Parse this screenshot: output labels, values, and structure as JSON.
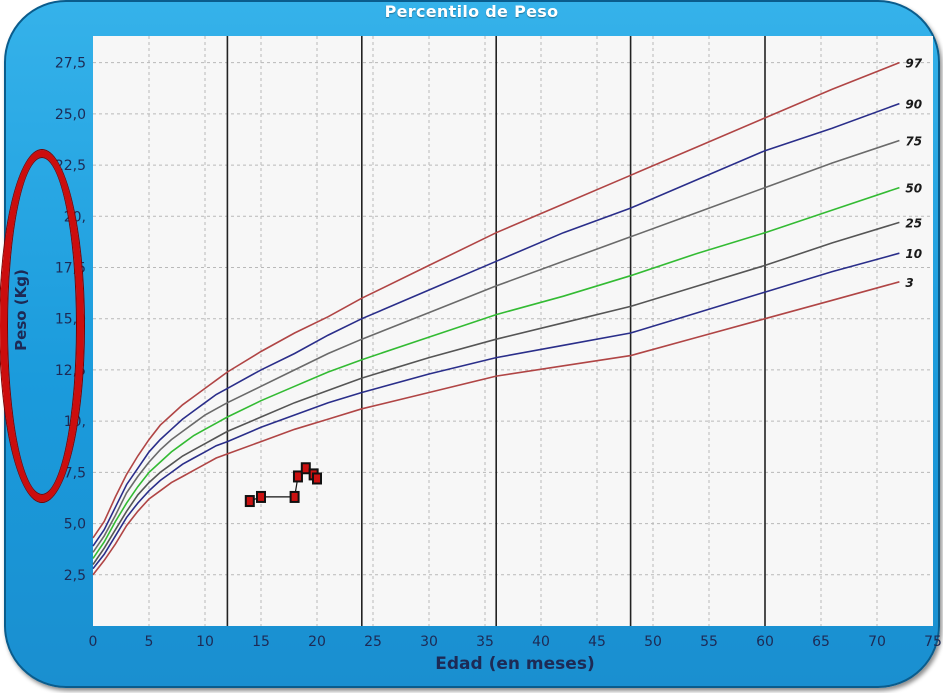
{
  "chart_data": {
    "type": "line",
    "title": "Percentilo de Peso",
    "xlabel": "Edad (en meses)",
    "ylabel": "Peso (Kg)",
    "xlim": [
      0,
      75
    ],
    "ylim": [
      0,
      28.8
    ],
    "x_ticks": [
      "0",
      "5",
      "10",
      "15",
      "20",
      "25",
      "30",
      "35",
      "40",
      "45",
      "50",
      "55",
      "60",
      "65",
      "70",
      "75"
    ],
    "y_ticks": [
      {
        "value": 2.5,
        "label": "2,5"
      },
      {
        "value": 5.0,
        "label": "5,0"
      },
      {
        "value": 7.5,
        "label": "7,5"
      },
      {
        "value": 10.0,
        "label": "10,"
      },
      {
        "value": 12.5,
        "label": "12,5"
      },
      {
        "value": 15.0,
        "label": "15,0"
      },
      {
        "value": 17.5,
        "label": "17,5"
      },
      {
        "value": 20.0,
        "label": "20,"
      },
      {
        "value": 22.5,
        "label": "22,5"
      },
      {
        "value": 25.0,
        "label": "25,0"
      },
      {
        "value": 27.5,
        "label": "27,5"
      }
    ],
    "year_lines": [
      12,
      24,
      36,
      48,
      60
    ],
    "grid": true,
    "x": [
      0,
      1,
      2,
      3,
      4,
      5,
      6,
      7,
      8,
      9,
      10,
      11,
      12,
      15,
      18,
      21,
      24,
      30,
      36,
      42,
      48,
      54,
      60,
      66,
      72
    ],
    "series": [
      {
        "name": "97",
        "color": "#b04545",
        "values": [
          4.3,
          5.1,
          6.3,
          7.4,
          8.3,
          9.1,
          9.8,
          10.3,
          10.8,
          11.2,
          11.6,
          12.0,
          12.4,
          13.4,
          14.3,
          15.1,
          16.0,
          17.6,
          19.2,
          20.6,
          22.0,
          23.4,
          24.8,
          26.2,
          27.5
        ]
      },
      {
        "name": "90",
        "color": "#2a2e8a",
        "values": [
          3.9,
          4.7,
          5.8,
          6.9,
          7.7,
          8.5,
          9.1,
          9.6,
          10.1,
          10.5,
          10.9,
          11.3,
          11.6,
          12.5,
          13.3,
          14.2,
          15.0,
          16.4,
          17.8,
          19.2,
          20.4,
          21.8,
          23.2,
          24.3,
          25.5
        ]
      },
      {
        "name": "75",
        "color": "#6a6a6a",
        "values": [
          3.6,
          4.4,
          5.4,
          6.5,
          7.3,
          8.0,
          8.6,
          9.1,
          9.5,
          9.9,
          10.3,
          10.6,
          10.9,
          11.7,
          12.5,
          13.3,
          14.0,
          15.3,
          16.6,
          17.8,
          19.0,
          20.2,
          21.4,
          22.6,
          23.7
        ]
      },
      {
        "name": "50",
        "color": "#33bb33",
        "values": [
          3.3,
          4.1,
          5.1,
          6.0,
          6.8,
          7.5,
          8.0,
          8.5,
          8.9,
          9.3,
          9.6,
          9.9,
          10.2,
          11.0,
          11.7,
          12.4,
          13.0,
          14.1,
          15.2,
          16.1,
          17.1,
          18.2,
          19.2,
          20.3,
          21.4
        ]
      },
      {
        "name": "25",
        "color": "#555555",
        "values": [
          3.0,
          3.8,
          4.7,
          5.6,
          6.4,
          7.0,
          7.5,
          7.9,
          8.3,
          8.6,
          8.9,
          9.2,
          9.5,
          10.2,
          10.9,
          11.5,
          12.1,
          13.1,
          14.0,
          14.8,
          15.6,
          16.6,
          17.6,
          18.7,
          19.7
        ]
      },
      {
        "name": "10",
        "color": "#2a2e8a",
        "values": [
          2.8,
          3.5,
          4.4,
          5.3,
          6.0,
          6.6,
          7.1,
          7.5,
          7.9,
          8.2,
          8.5,
          8.8,
          9.0,
          9.7,
          10.3,
          10.9,
          11.4,
          12.3,
          13.1,
          13.7,
          14.3,
          15.3,
          16.3,
          17.3,
          18.2
        ]
      },
      {
        "name": "3",
        "color": "#b04545",
        "values": [
          2.5,
          3.2,
          4.0,
          4.9,
          5.6,
          6.2,
          6.6,
          7.0,
          7.3,
          7.6,
          7.9,
          8.2,
          8.4,
          9.0,
          9.6,
          10.1,
          10.6,
          11.4,
          12.2,
          12.7,
          13.2,
          14.1,
          15.0,
          15.9,
          16.8
        ]
      }
    ],
    "patient_points": [
      {
        "x": 14.0,
        "y": 6.1
      },
      {
        "x": 15.0,
        "y": 6.3
      },
      {
        "x": 18.0,
        "y": 6.3
      },
      {
        "x": 18.3,
        "y": 7.3
      },
      {
        "x": 19.0,
        "y": 7.7
      },
      {
        "x": 19.7,
        "y": 7.4
      },
      {
        "x": 20.0,
        "y": 7.2
      }
    ],
    "colors": {
      "frame": "#1b9bdc",
      "plot_background": "#f7f7f7",
      "annotation": "#cc0d0d",
      "marker_fill": "#cc1111",
      "marker_border": "#111111"
    }
  }
}
